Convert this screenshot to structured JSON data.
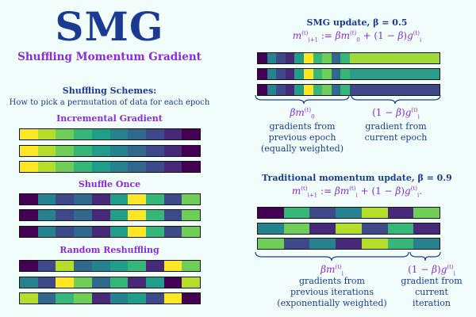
{
  "header": {
    "title": "SMG",
    "subtitle": "Shuffling Momentum Gradient"
  },
  "schemes": {
    "title": "Shuffling Schemes:",
    "description": "How to pick a permutation of data for each epoch",
    "incremental": {
      "label": "Incremental Gradient",
      "rows": [
        [
          "#fde725",
          "#b5de2b",
          "#6ece58",
          "#35b779",
          "#1f9e89",
          "#26828e",
          "#31688e",
          "#3e4989",
          "#482878",
          "#440154"
        ],
        [
          "#fde725",
          "#b5de2b",
          "#6ece58",
          "#35b779",
          "#1f9e89",
          "#26828e",
          "#31688e",
          "#3e4989",
          "#482878",
          "#440154"
        ],
        [
          "#fde725",
          "#b5de2b",
          "#6ece58",
          "#35b779",
          "#1f9e89",
          "#26828e",
          "#31688e",
          "#3e4989",
          "#482878",
          "#440154"
        ]
      ]
    },
    "shuffle_once": {
      "label": "Shuffle Once",
      "rows": [
        [
          "#440154",
          "#26828e",
          "#3e4989",
          "#31688e",
          "#482878",
          "#1f9e89",
          "#fde725",
          "#35b779",
          "#3e4989",
          "#6ece58"
        ],
        [
          "#440154",
          "#26828e",
          "#3e4989",
          "#31688e",
          "#482878",
          "#1f9e89",
          "#fde725",
          "#35b779",
          "#3e4989",
          "#6ece58"
        ],
        [
          "#440154",
          "#26828e",
          "#3e4989",
          "#31688e",
          "#482878",
          "#1f9e89",
          "#fde725",
          "#35b779",
          "#3e4989",
          "#6ece58"
        ]
      ]
    },
    "random_reshuffling": {
      "label": "Random Reshuffling",
      "rows": [
        [
          "#440154",
          "#3e4989",
          "#b5de2b",
          "#31688e",
          "#26828e",
          "#1f9e89",
          "#35b779",
          "#482878",
          "#fde725",
          "#6ece58"
        ],
        [
          "#26828e",
          "#3e4989",
          "#fde725",
          "#6ece58",
          "#31688e",
          "#35b779",
          "#482878",
          "#1f9e89",
          "#440154",
          "#b5de2b"
        ],
        [
          "#b5de2b",
          "#31688e",
          "#35b779",
          "#6ece58",
          "#482878",
          "#26828e",
          "#1f9e89",
          "#3e4989",
          "#fde725",
          "#440154"
        ]
      ]
    }
  },
  "smg_update": {
    "title": "SMG update, β = 0.5",
    "rows": [
      {
        "left": [
          "#440154",
          "#26828e",
          "#3e4989",
          "#482878",
          "#1f9e89",
          "#fde725",
          "#35b779",
          "#6ece58",
          "#31688e",
          "#35b779"
        ],
        "right": "#a0da39"
      },
      {
        "left": [
          "#440154",
          "#26828e",
          "#3e4989",
          "#482878",
          "#1f9e89",
          "#fde725",
          "#35b779",
          "#6ece58",
          "#31688e",
          "#35b779"
        ],
        "right": "#2a9d8a"
      },
      {
        "left": [
          "#440154",
          "#26828e",
          "#3e4989",
          "#482878",
          "#1f9e89",
          "#fde725",
          "#35b779",
          "#6ece58",
          "#31688e",
          "#35b779"
        ],
        "right": "#3e4989"
      }
    ],
    "left_caption": [
      "gradients from",
      "previous epoch",
      "(equally weighted)"
    ],
    "right_caption": [
      "gradient from",
      "current epoch"
    ]
  },
  "traditional_update": {
    "title": "Traditional momentum update, β = 0.9",
    "rows": [
      [
        "#440154",
        "#35b779",
        "#3e4989",
        "#26828e",
        "#b5de2b",
        "#482878",
        "#6ece58"
      ],
      [
        "#26828e",
        "#6ece58",
        "#482878",
        "#b5de2b",
        "#3e4989",
        "#35b779",
        "#482878"
      ],
      [
        "#6ece58",
        "#3e4989",
        "#26828e",
        "#482878",
        "#b5de2b",
        "#35b779",
        "#26828e"
      ]
    ],
    "left_caption": [
      "gradients from",
      "previous iterations",
      "(exponentially weighted)"
    ],
    "right_caption": [
      "gradient from",
      "current iteration"
    ]
  }
}
